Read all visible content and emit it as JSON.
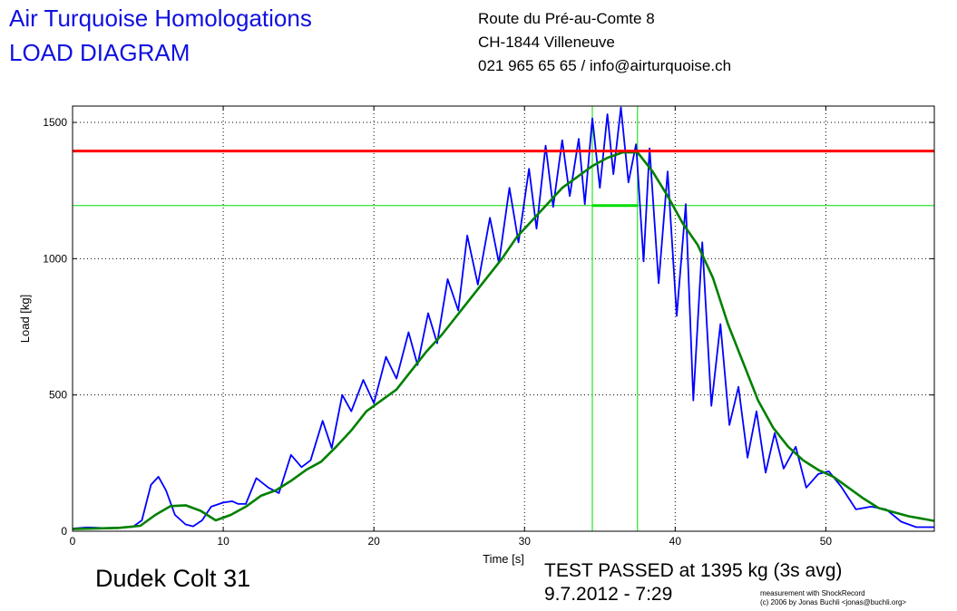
{
  "header": {
    "title_line1": "Air Turquoise Homologations",
    "title_line2": "LOAD DIAGRAM",
    "address_line1": "Route du Pré-au-Comte 8",
    "address_line2": "CH-1844 Villeneuve",
    "contact_line": "021 965 65 65 / info@airturquoise.ch"
  },
  "footer": {
    "model": "Dudek Colt 31",
    "result": "TEST PASSED at 1395 kg (3s avg)",
    "datetime": "9.7.2012 - 7:29",
    "credit_line1": "measurement with ShockRecord",
    "credit_line2": "(c) 2006 by Jonas Buchli <jonas@buchli.org>"
  },
  "colors": {
    "title": "#1010e0",
    "raw_load": "#0000ff",
    "avg_load": "#008000",
    "pass_line": "#ff0000",
    "window": "#00dd00",
    "grid": "#000000"
  },
  "chart_data": {
    "type": "line",
    "xlabel": "Time [s]",
    "ylabel": "Load [kg]",
    "xlim": [
      0,
      57.2
    ],
    "ylim": [
      0,
      1560
    ],
    "xticks": [
      0,
      10,
      20,
      30,
      40,
      50
    ],
    "yticks": [
      0,
      500,
      1000,
      1500
    ],
    "grid": true,
    "pass_load": 1395,
    "window_level": 1195,
    "window_start": 34.5,
    "window_end": 37.5,
    "series": [
      {
        "values": [
          [
            0,
            10
          ],
          [
            1,
            14
          ],
          [
            2,
            12
          ],
          [
            3,
            13
          ],
          [
            4,
            16
          ],
          [
            4.6,
            40
          ],
          [
            5.2,
            170
          ],
          [
            5.7,
            200
          ],
          [
            6.2,
            150
          ],
          [
            6.8,
            60
          ],
          [
            7.5,
            25
          ],
          [
            8,
            18
          ],
          [
            8.6,
            40
          ],
          [
            9.2,
            90
          ],
          [
            10,
            105
          ],
          [
            10.6,
            110
          ],
          [
            11,
            100
          ],
          [
            11.5,
            100
          ],
          [
            12.2,
            195
          ],
          [
            13,
            160
          ],
          [
            13.7,
            140
          ],
          [
            14.5,
            280
          ],
          [
            15.2,
            235
          ],
          [
            15.8,
            260
          ],
          [
            16.6,
            405
          ],
          [
            17.2,
            305
          ],
          [
            17.9,
            500
          ],
          [
            18.5,
            440
          ],
          [
            19.3,
            555
          ],
          [
            20,
            470
          ],
          [
            20.8,
            640
          ],
          [
            21.5,
            560
          ],
          [
            22.3,
            730
          ],
          [
            22.9,
            610
          ],
          [
            23.6,
            800
          ],
          [
            24.2,
            690
          ],
          [
            24.9,
            925
          ],
          [
            25.6,
            810
          ],
          [
            26.2,
            1085
          ],
          [
            26.9,
            905
          ],
          [
            27.7,
            1150
          ],
          [
            28.3,
            985
          ],
          [
            29,
            1260
          ],
          [
            29.6,
            1060
          ],
          [
            30.3,
            1330
          ],
          [
            30.8,
            1110
          ],
          [
            31.4,
            1415
          ],
          [
            31.9,
            1190
          ],
          [
            32.5,
            1435
          ],
          [
            33,
            1230
          ],
          [
            33.6,
            1440
          ],
          [
            34,
            1200
          ],
          [
            34.5,
            1515
          ],
          [
            35,
            1260
          ],
          [
            35.5,
            1530
          ],
          [
            35.9,
            1310
          ],
          [
            36.4,
            1555
          ],
          [
            36.9,
            1280
          ],
          [
            37.4,
            1420
          ],
          [
            37.9,
            990
          ],
          [
            38.3,
            1405
          ],
          [
            38.9,
            910
          ],
          [
            39.5,
            1320
          ],
          [
            40.1,
            790
          ],
          [
            40.7,
            1200
          ],
          [
            41.2,
            480
          ],
          [
            41.8,
            1060
          ],
          [
            42.4,
            460
          ],
          [
            43,
            760
          ],
          [
            43.6,
            390
          ],
          [
            44.2,
            530
          ],
          [
            44.8,
            270
          ],
          [
            45.4,
            440
          ],
          [
            46,
            215
          ],
          [
            46.6,
            360
          ],
          [
            47.2,
            230
          ],
          [
            48,
            310
          ],
          [
            48.7,
            160
          ],
          [
            49.5,
            210
          ],
          [
            50.2,
            220
          ],
          [
            51,
            165
          ],
          [
            52,
            80
          ],
          [
            53,
            90
          ],
          [
            54,
            80
          ],
          [
            55,
            35
          ],
          [
            56,
            15
          ],
          [
            57.2,
            15
          ]
        ]
      },
      {
        "values": [
          [
            0,
            8
          ],
          [
            3,
            12
          ],
          [
            4.5,
            20
          ],
          [
            5.5,
            60
          ],
          [
            6.5,
            92
          ],
          [
            7.5,
            95
          ],
          [
            8.5,
            75
          ],
          [
            9.5,
            40
          ],
          [
            10.5,
            60
          ],
          [
            11.5,
            90
          ],
          [
            12.5,
            130
          ],
          [
            13.5,
            150
          ],
          [
            14.5,
            185
          ],
          [
            15.5,
            225
          ],
          [
            16.5,
            255
          ],
          [
            17.5,
            310
          ],
          [
            18.5,
            370
          ],
          [
            19.5,
            440
          ],
          [
            20.5,
            480
          ],
          [
            21.5,
            520
          ],
          [
            22.5,
            590
          ],
          [
            23.5,
            660
          ],
          [
            24.5,
            720
          ],
          [
            25.5,
            790
          ],
          [
            26.5,
            860
          ],
          [
            27.5,
            930
          ],
          [
            28.5,
            1000
          ],
          [
            29.5,
            1080
          ],
          [
            30.5,
            1140
          ],
          [
            31.5,
            1200
          ],
          [
            32.5,
            1260
          ],
          [
            33.5,
            1300
          ],
          [
            34.5,
            1340
          ],
          [
            35.5,
            1370
          ],
          [
            36.5,
            1390
          ],
          [
            37.5,
            1390
          ],
          [
            38.5,
            1320
          ],
          [
            39.5,
            1230
          ],
          [
            40.5,
            1130
          ],
          [
            41.5,
            1050
          ],
          [
            42.5,
            930
          ],
          [
            43.5,
            760
          ],
          [
            44.5,
            620
          ],
          [
            45.5,
            480
          ],
          [
            46.5,
            380
          ],
          [
            47.5,
            310
          ],
          [
            48.5,
            260
          ],
          [
            49.5,
            225
          ],
          [
            50.5,
            200
          ],
          [
            51.5,
            160
          ],
          [
            52.5,
            120
          ],
          [
            53.5,
            85
          ],
          [
            54.5,
            70
          ],
          [
            55.5,
            55
          ],
          [
            56.5,
            45
          ],
          [
            57.2,
            38
          ]
        ]
      }
    ]
  }
}
